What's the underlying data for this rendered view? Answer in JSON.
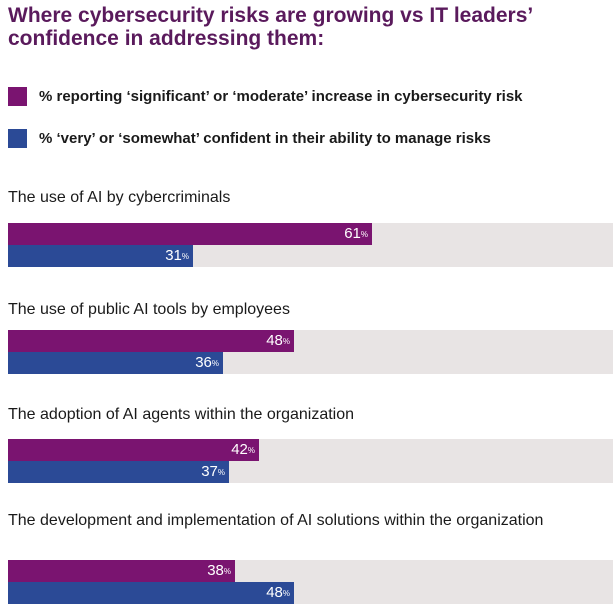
{
  "chart_data": {
    "type": "bar",
    "orientation": "horizontal",
    "title": "Where cybersecurity risks are growing vs IT leaders’ confidence in addressing them:",
    "legend_placement": "top",
    "grid": false,
    "xlim": [
      0,
      100
    ],
    "categories": [
      "The use of AI by cybercriminals",
      "The use of public AI tools by employees",
      "The adoption of AI agents within the organization",
      "The development and implementation of AI solutions within the organization"
    ],
    "series": [
      {
        "name": "%  reporting ‘significant’ or ‘moderate’ increase in cybersecurity risk",
        "color": "#7a1470",
        "values": [
          61,
          48,
          42,
          38
        ]
      },
      {
        "name": "%  ‘very’ or ‘somewhat’ confident in their ability to manage risks",
        "color": "#2b4a96",
        "values": [
          31,
          36,
          37,
          48
        ]
      }
    ],
    "track_color": "#e8e4e4",
    "value_suffix": "%"
  }
}
